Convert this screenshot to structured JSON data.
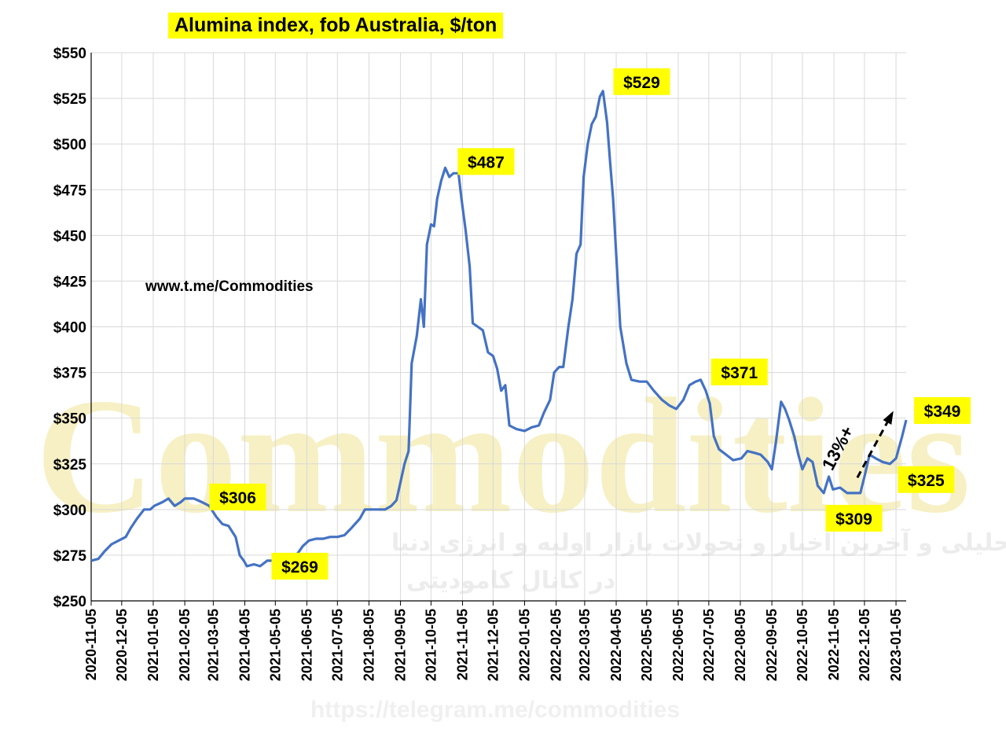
{
  "chart_data": {
    "type": "line",
    "title": "Alumina index, fob Australia, $/ton",
    "source": "www.t.me/Commodities",
    "watermark": "Commodities",
    "watermark_subtitle": "گزارشات تحلیلی و آخرین اخبار و تحولات بازار اولیه و انرژی دنیا",
    "watermark_subtitle2": "در کانال کامودیتی",
    "watermark_url": "https://telegram.me/commodities",
    "ylim": [
      250,
      550
    ],
    "ytick_values": [
      250,
      275,
      300,
      325,
      350,
      375,
      400,
      425,
      450,
      475,
      500,
      525,
      550
    ],
    "ytick_labels": [
      "$250",
      "$275",
      "$300",
      "$325",
      "$350",
      "$375",
      "$400",
      "$425",
      "$450",
      "$475",
      "$500",
      "$525",
      "$550"
    ],
    "xlim": [
      "2020-11-05",
      "2023-01-15"
    ],
    "xtick_labels": [
      "2020-11-05",
      "2020-12-05",
      "2021-01-05",
      "2021-02-05",
      "2021-03-05",
      "2021-04-05",
      "2021-05-05",
      "2021-06-05",
      "2021-07-05",
      "2021-08-05",
      "2021-09-05",
      "2021-10-05",
      "2021-11-05",
      "2021-12-05",
      "2022-01-05",
      "2022-02-05",
      "2022-03-05",
      "2022-04-05",
      "2022-05-05",
      "2022-06-05",
      "2022-07-05",
      "2022-08-05",
      "2022-09-05",
      "2022-10-05",
      "2022-11-05",
      "2022-12-05",
      "2023-01-05"
    ],
    "grid": true,
    "line_color": "#4472c4",
    "callout_color": "#ffff00",
    "series": [
      {
        "points": [
          [
            "2020-11-05",
            272
          ],
          [
            "2020-11-12",
            273
          ],
          [
            "2020-11-18",
            277
          ],
          [
            "2020-11-25",
            281
          ],
          [
            "2020-12-02",
            283
          ],
          [
            "2020-12-09",
            285
          ],
          [
            "2020-12-14",
            290
          ],
          [
            "2020-12-20",
            295
          ],
          [
            "2020-12-27",
            300
          ],
          [
            "2021-01-02",
            300
          ],
          [
            "2021-01-06",
            302
          ],
          [
            "2021-01-14",
            304
          ],
          [
            "2021-01-20",
            306
          ],
          [
            "2021-01-26",
            302
          ],
          [
            "2021-02-01",
            304
          ],
          [
            "2021-02-05",
            306
          ],
          [
            "2021-02-14",
            306
          ],
          [
            "2021-02-22",
            304
          ],
          [
            "2021-03-01",
            302
          ],
          [
            "2021-03-08",
            296
          ],
          [
            "2021-03-14",
            292
          ],
          [
            "2021-03-20",
            291
          ],
          [
            "2021-03-27",
            285
          ],
          [
            "2021-03-31",
            275
          ],
          [
            "2021-04-04",
            272
          ],
          [
            "2021-04-07",
            269
          ],
          [
            "2021-04-14",
            270
          ],
          [
            "2021-04-20",
            269
          ],
          [
            "2021-04-27",
            272
          ],
          [
            "2021-05-05",
            272
          ],
          [
            "2021-05-12",
            272
          ],
          [
            "2021-05-19",
            274
          ],
          [
            "2021-05-27",
            276
          ],
          [
            "2021-06-01",
            280
          ],
          [
            "2021-06-07",
            283
          ],
          [
            "2021-06-14",
            284
          ],
          [
            "2021-06-21",
            284
          ],
          [
            "2021-06-28",
            285
          ],
          [
            "2021-07-05",
            285
          ],
          [
            "2021-07-12",
            286
          ],
          [
            "2021-07-19",
            290
          ],
          [
            "2021-07-27",
            295
          ],
          [
            "2021-08-01",
            300
          ],
          [
            "2021-08-07",
            300
          ],
          [
            "2021-08-14",
            300
          ],
          [
            "2021-08-21",
            300
          ],
          [
            "2021-08-27",
            302
          ],
          [
            "2021-09-01",
            305
          ],
          [
            "2021-09-05",
            315
          ],
          [
            "2021-09-09",
            325
          ],
          [
            "2021-09-13",
            332
          ],
          [
            "2021-09-16",
            380
          ],
          [
            "2021-09-21",
            395
          ],
          [
            "2021-09-25",
            415
          ],
          [
            "2021-09-28",
            400
          ],
          [
            "2021-10-01",
            445
          ],
          [
            "2021-10-05",
            456
          ],
          [
            "2021-10-08",
            455
          ],
          [
            "2021-10-11",
            470
          ],
          [
            "2021-10-15",
            480
          ],
          [
            "2021-10-19",
            487
          ],
          [
            "2021-10-23",
            482
          ],
          [
            "2021-10-27",
            484
          ],
          [
            "2021-11-01",
            484
          ],
          [
            "2021-11-04",
            470
          ],
          [
            "2021-11-08",
            453
          ],
          [
            "2021-11-12",
            433
          ],
          [
            "2021-11-15",
            402
          ],
          [
            "2021-11-20",
            400
          ],
          [
            "2021-11-25",
            398
          ],
          [
            "2021-11-30",
            386
          ],
          [
            "2021-12-05",
            384
          ],
          [
            "2021-12-09",
            377
          ],
          [
            "2021-12-13",
            365
          ],
          [
            "2021-12-17",
            368
          ],
          [
            "2021-12-21",
            346
          ],
          [
            "2021-12-28",
            344
          ],
          [
            "2022-01-05",
            343
          ],
          [
            "2022-01-12",
            345
          ],
          [
            "2022-01-19",
            346
          ],
          [
            "2022-01-24",
            353
          ],
          [
            "2022-01-30",
            360
          ],
          [
            "2022-02-03",
            375
          ],
          [
            "2022-02-08",
            378
          ],
          [
            "2022-02-12",
            378
          ],
          [
            "2022-02-17",
            400
          ],
          [
            "2022-02-21",
            415
          ],
          [
            "2022-02-25",
            440
          ],
          [
            "2022-03-01",
            445
          ],
          [
            "2022-03-04",
            482
          ],
          [
            "2022-03-08",
            500
          ],
          [
            "2022-03-12",
            511
          ],
          [
            "2022-03-16",
            515
          ],
          [
            "2022-03-20",
            526
          ],
          [
            "2022-03-23",
            529
          ],
          [
            "2022-03-27",
            512
          ],
          [
            "2022-03-30",
            490
          ],
          [
            "2022-04-02",
            470
          ],
          [
            "2022-04-05",
            440
          ],
          [
            "2022-04-09",
            400
          ],
          [
            "2022-04-15",
            380
          ],
          [
            "2022-04-20",
            371
          ],
          [
            "2022-04-28",
            370
          ],
          [
            "2022-05-05",
            370
          ],
          [
            "2022-05-12",
            365
          ],
          [
            "2022-05-20",
            360
          ],
          [
            "2022-05-27",
            357
          ],
          [
            "2022-06-03",
            355
          ],
          [
            "2022-06-10",
            360
          ],
          [
            "2022-06-16",
            368
          ],
          [
            "2022-06-22",
            370
          ],
          [
            "2022-06-27",
            371
          ],
          [
            "2022-07-02",
            365
          ],
          [
            "2022-07-06",
            358
          ],
          [
            "2022-07-10",
            340
          ],
          [
            "2022-07-15",
            333
          ],
          [
            "2022-07-22",
            330
          ],
          [
            "2022-07-29",
            327
          ],
          [
            "2022-08-06",
            328
          ],
          [
            "2022-08-12",
            332
          ],
          [
            "2022-08-19",
            331
          ],
          [
            "2022-08-25",
            330
          ],
          [
            "2022-09-01",
            326
          ],
          [
            "2022-09-05",
            322
          ],
          [
            "2022-09-09",
            337
          ],
          [
            "2022-09-14",
            359
          ],
          [
            "2022-09-18",
            355
          ],
          [
            "2022-09-22",
            349
          ],
          [
            "2022-09-27",
            340
          ],
          [
            "2022-10-01",
            330
          ],
          [
            "2022-10-05",
            322
          ],
          [
            "2022-10-10",
            328
          ],
          [
            "2022-10-15",
            326
          ],
          [
            "2022-10-20",
            313
          ],
          [
            "2022-10-26",
            309
          ],
          [
            "2022-10-31",
            318
          ],
          [
            "2022-11-04",
            311
          ],
          [
            "2022-11-11",
            312
          ],
          [
            "2022-11-18",
            309
          ],
          [
            "2022-11-25",
            309
          ],
          [
            "2022-12-01",
            309
          ],
          [
            "2022-12-05",
            318
          ],
          [
            "2022-12-10",
            330
          ],
          [
            "2022-12-16",
            328
          ],
          [
            "2022-12-23",
            326
          ],
          [
            "2022-12-30",
            325
          ],
          [
            "2023-01-05",
            328
          ],
          [
            "2023-01-11",
            340
          ],
          [
            "2023-01-15",
            349
          ]
        ]
      }
    ],
    "annotations": [
      {
        "label": "$306",
        "date": "2021-02-20",
        "value": 306
      },
      {
        "label": "$269",
        "date": "2021-04-22",
        "value": 269
      },
      {
        "label": "$487",
        "date": "2021-10-22",
        "value": 487
      },
      {
        "label": "$529",
        "date": "2022-03-24",
        "value": 529
      },
      {
        "label": "$371",
        "date": "2022-06-28",
        "value": 371
      },
      {
        "label": "$309",
        "date": "2022-11-20",
        "value": 309
      },
      {
        "label": "$349",
        "date": "2023-01-15",
        "value": 349
      },
      {
        "label": "$325",
        "date": "2022-12-30",
        "value": 325
      }
    ],
    "change_annotation": {
      "label": "13%+",
      "from_date": "2022-11-28",
      "from_value": 314,
      "to_date": "2023-01-01",
      "to_value": 349
    }
  }
}
